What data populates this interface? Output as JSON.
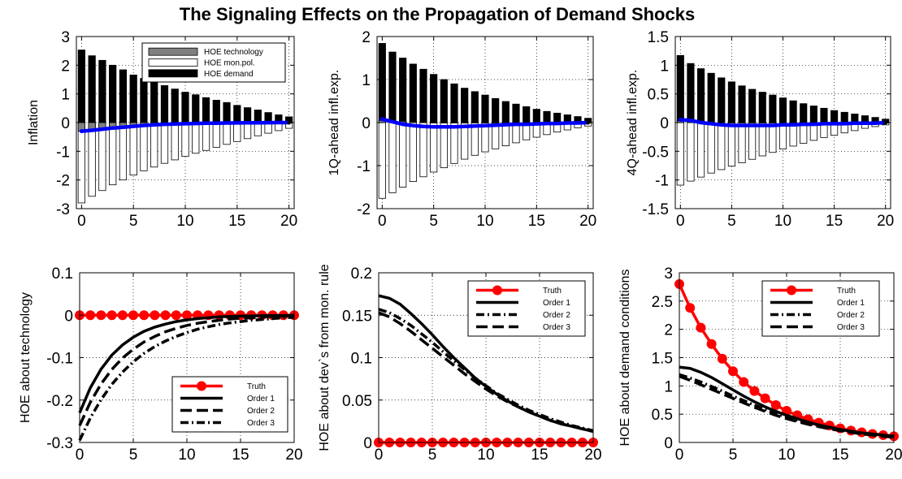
{
  "figure": {
    "title": "The Signaling Effects on the Propagation of Demand Shocks"
  },
  "chart_data": [
    {
      "id": "inflation",
      "type": "bar",
      "ylabel": "Inflation",
      "xlim": [
        -0.5,
        20.5
      ],
      "ylim": [
        -3,
        3
      ],
      "xticks": [
        0,
        5,
        10,
        15,
        20
      ],
      "xtick_labels": [
        "0",
        "5",
        "10",
        "15",
        "20"
      ],
      "yticks": [
        -3,
        -2,
        -1,
        0,
        1,
        2,
        3
      ],
      "ytick_labels": [
        "-3",
        "-2",
        "-1",
        "0",
        "1",
        "2",
        "3"
      ],
      "grid": "dotted",
      "legend": {
        "position": "top-right",
        "entries": [
          "HOE technology",
          "HOE mon.pol.",
          "HOE demand"
        ]
      },
      "x": [
        0,
        1,
        2,
        3,
        4,
        5,
        6,
        7,
        8,
        9,
        10,
        11,
        12,
        13,
        14,
        15,
        16,
        17,
        18,
        19,
        20
      ],
      "series": [
        {
          "name": "HOE technology",
          "color": "#808080",
          "values": [
            -0.3,
            -0.24,
            -0.19,
            -0.15,
            -0.12,
            -0.09,
            -0.07,
            -0.05,
            -0.04,
            -0.03,
            -0.02,
            -0.015,
            -0.01,
            -0.008,
            -0.006,
            -0.004,
            -0.003,
            -0.002,
            -0.001,
            -0.001,
            0
          ]
        },
        {
          "name": "HOE mon.pol.",
          "color": "#ffffff",
          "values": [
            -2.8,
            -2.57,
            -2.37,
            -2.17,
            -2.0,
            -1.83,
            -1.68,
            -1.55,
            -1.42,
            -1.3,
            -1.18,
            -1.07,
            -0.97,
            -0.86,
            -0.76,
            -0.66,
            -0.56,
            -0.46,
            -0.37,
            -0.28,
            -0.2
          ]
        },
        {
          "name": "HOE demand",
          "color": "#000000",
          "values": [
            2.53,
            2.33,
            2.17,
            2.0,
            1.84,
            1.66,
            1.54,
            1.41,
            1.29,
            1.17,
            1.06,
            0.97,
            0.87,
            0.78,
            0.7,
            0.6,
            0.52,
            0.44,
            0.35,
            0.27,
            0.2
          ]
        },
        {
          "name": "",
          "type": "line",
          "color": "#0000ff",
          "values": [
            -0.3,
            -0.27,
            -0.23,
            -0.19,
            -0.16,
            -0.13,
            -0.1,
            -0.08,
            -0.06,
            -0.05,
            -0.04,
            -0.03,
            -0.02,
            -0.02,
            -0.015,
            -0.01,
            -0.008,
            -0.005,
            -0.003,
            -0.001,
            0
          ]
        }
      ]
    },
    {
      "id": "infl1q",
      "type": "bar",
      "ylabel": "1Q-ahead infl.exp.",
      "xlim": [
        -0.5,
        20.5
      ],
      "ylim": [
        -2,
        2
      ],
      "xticks": [
        0,
        5,
        10,
        15,
        20
      ],
      "xtick_labels": [
        "0",
        "5",
        "10",
        "15",
        "20"
      ],
      "yticks": [
        -2,
        -1,
        0,
        1,
        2
      ],
      "ytick_labels": [
        "-2",
        "-1",
        "0",
        "1",
        "2"
      ],
      "grid": "dotted",
      "x": [
        0,
        1,
        2,
        3,
        4,
        5,
        6,
        7,
        8,
        9,
        10,
        11,
        12,
        13,
        14,
        15,
        16,
        17,
        18,
        19,
        20
      ],
      "series": [
        {
          "name": "HOE technology",
          "color": "#808080",
          "values": [
            0.05,
            0.04,
            0.03,
            0.02,
            0.01,
            0,
            0,
            0,
            0,
            0,
            0,
            0,
            0,
            0,
            0,
            0,
            0,
            0,
            0,
            0,
            0
          ]
        },
        {
          "name": "HOE mon.pol.",
          "color": "#ffffff",
          "values": [
            -1.76,
            -1.63,
            -1.5,
            -1.37,
            -1.26,
            -1.15,
            -1.05,
            -0.95,
            -0.85,
            -0.76,
            -0.68,
            -0.61,
            -0.54,
            -0.47,
            -0.4,
            -0.34,
            -0.28,
            -0.22,
            -0.17,
            -0.12,
            -0.08
          ]
        },
        {
          "name": "HOE demand",
          "color": "#000000",
          "values": [
            1.84,
            1.64,
            1.5,
            1.36,
            1.24,
            1.12,
            1.0,
            0.9,
            0.8,
            0.72,
            0.64,
            0.56,
            0.49,
            0.43,
            0.37,
            0.31,
            0.26,
            0.22,
            0.18,
            0.14,
            0.1
          ]
        },
        {
          "name": "",
          "type": "line",
          "color": "#0000ff",
          "values": [
            0.08,
            0.02,
            -0.04,
            -0.07,
            -0.09,
            -0.1,
            -0.1,
            -0.1,
            -0.09,
            -0.08,
            -0.07,
            -0.06,
            -0.05,
            -0.04,
            -0.04,
            -0.03,
            -0.02,
            -0.02,
            -0.01,
            -0.01,
            0
          ]
        }
      ]
    },
    {
      "id": "infl4q",
      "type": "bar",
      "ylabel": "4Q-ahead infl.exp.",
      "xlim": [
        -0.5,
        20.5
      ],
      "ylim": [
        -1.5,
        1.5
      ],
      "xticks": [
        0,
        5,
        10,
        15,
        20
      ],
      "xtick_labels": [
        "0",
        "5",
        "10",
        "15",
        "20"
      ],
      "yticks": [
        -1.5,
        -1,
        -0.5,
        0,
        0.5,
        1,
        1.5
      ],
      "ytick_labels": [
        "-1.5",
        "-1",
        "-0.5",
        "0",
        "0.5",
        "1",
        "1.5"
      ],
      "grid": "dotted",
      "x": [
        0,
        1,
        2,
        3,
        4,
        5,
        6,
        7,
        8,
        9,
        10,
        11,
        12,
        13,
        14,
        15,
        16,
        17,
        18,
        19,
        20
      ],
      "series": [
        {
          "name": "HOE technology",
          "color": "#808080",
          "values": [
            0.03,
            0.02,
            0.015,
            0.01,
            0.005,
            0,
            0,
            0,
            0,
            0,
            0,
            0,
            0,
            0,
            0,
            0,
            0,
            0,
            0,
            0,
            0
          ]
        },
        {
          "name": "HOE mon.pol.",
          "color": "#ffffff",
          "values": [
            -1.09,
            -1.02,
            -0.95,
            -0.88,
            -0.82,
            -0.76,
            -0.7,
            -0.64,
            -0.58,
            -0.52,
            -0.46,
            -0.41,
            -0.36,
            -0.31,
            -0.26,
            -0.22,
            -0.18,
            -0.14,
            -0.1,
            -0.07,
            -0.04
          ]
        },
        {
          "name": "HOE demand",
          "color": "#000000",
          "values": [
            1.17,
            1.03,
            0.94,
            0.86,
            0.78,
            0.71,
            0.64,
            0.58,
            0.53,
            0.48,
            0.43,
            0.38,
            0.33,
            0.29,
            0.25,
            0.21,
            0.18,
            0.15,
            0.12,
            0.09,
            0.06
          ]
        },
        {
          "name": "",
          "type": "line",
          "color": "#0000ff",
          "values": [
            0.05,
            0.04,
            0.0,
            -0.02,
            -0.04,
            -0.05,
            -0.05,
            -0.05,
            -0.05,
            -0.05,
            -0.04,
            -0.04,
            -0.03,
            -0.03,
            -0.02,
            -0.02,
            -0.02,
            -0.01,
            -0.01,
            -0.01,
            0
          ]
        }
      ]
    },
    {
      "id": "hoe_tech",
      "type": "line",
      "ylabel": "HOE  about technology",
      "xlim": [
        0,
        20
      ],
      "ylim": [
        -0.3,
        0.1
      ],
      "xticks": [
        0,
        5,
        10,
        15,
        20
      ],
      "xtick_labels": [
        "0",
        "5",
        "10",
        "15",
        "20"
      ],
      "yticks": [
        -0.3,
        -0.2,
        -0.1,
        0,
        0.1
      ],
      "ytick_labels": [
        "-0.3",
        "-0.2",
        "-0.1",
        "0",
        "0.1"
      ],
      "grid": "dotted",
      "legend": {
        "position": "bottom-right",
        "entries": [
          "Truth",
          "Order 1",
          "Order 2",
          "Order 3"
        ]
      },
      "x": [
        0,
        1,
        2,
        3,
        4,
        5,
        6,
        7,
        8,
        9,
        10,
        11,
        12,
        13,
        14,
        15,
        16,
        17,
        18,
        19,
        20
      ],
      "series": [
        {
          "name": "Truth",
          "style": "red-dot",
          "values": [
            0,
            0,
            0,
            0,
            0,
            0,
            0,
            0,
            0,
            0,
            0,
            0,
            0,
            0,
            0,
            0,
            0,
            0,
            0,
            0,
            0
          ]
        },
        {
          "name": "Order 1",
          "style": "solid",
          "values": [
            -0.23,
            -0.171,
            -0.127,
            -0.094,
            -0.07,
            -0.052,
            -0.038,
            -0.028,
            -0.021,
            -0.015,
            -0.011,
            -0.008,
            -0.006,
            -0.004,
            -0.003,
            -0.002,
            -0.002,
            -0.001,
            -0.001,
            -0.001,
            0
          ]
        },
        {
          "name": "Order 2",
          "style": "dashed",
          "values": [
            -0.26,
            -0.205,
            -0.162,
            -0.128,
            -0.101,
            -0.08,
            -0.063,
            -0.05,
            -0.039,
            -0.031,
            -0.024,
            -0.019,
            -0.015,
            -0.012,
            -0.009,
            -0.007,
            -0.006,
            -0.004,
            -0.003,
            -0.002,
            -0.002
          ]
        },
        {
          "name": "Order 3",
          "style": "dashdot",
          "values": [
            -0.295,
            -0.242,
            -0.199,
            -0.163,
            -0.134,
            -0.11,
            -0.09,
            -0.074,
            -0.061,
            -0.05,
            -0.041,
            -0.033,
            -0.027,
            -0.022,
            -0.018,
            -0.015,
            -0.012,
            -0.01,
            -0.008,
            -0.006,
            -0.005
          ]
        }
      ]
    },
    {
      "id": "hoe_mon",
      "type": "line",
      "ylabel": "HOE  about dev`s from mon. rule",
      "xlim": [
        0,
        20
      ],
      "ylim": [
        0,
        0.2
      ],
      "xticks": [
        0,
        5,
        10,
        15,
        20
      ],
      "xtick_labels": [
        "0",
        "5",
        "10",
        "15",
        "20"
      ],
      "yticks": [
        0,
        0.05,
        0.1,
        0.15,
        0.2
      ],
      "ytick_labels": [
        "0",
        "0.05",
        "0.1",
        "0.15",
        "0.2"
      ],
      "grid": "dotted",
      "legend": {
        "position": "top-right",
        "entries": [
          "Truth",
          "Order 1",
          "Order 2",
          "Order 3"
        ]
      },
      "x": [
        0,
        1,
        2,
        3,
        4,
        5,
        6,
        7,
        8,
        9,
        10,
        11,
        12,
        13,
        14,
        15,
        16,
        17,
        18,
        19,
        20
      ],
      "series": [
        {
          "name": "Truth",
          "style": "red-dot",
          "values": [
            0,
            0,
            0,
            0,
            0,
            0,
            0,
            0,
            0,
            0,
            0,
            0,
            0,
            0,
            0,
            0,
            0,
            0,
            0,
            0,
            0
          ]
        },
        {
          "name": "Order 1",
          "style": "solid",
          "values": [
            0.173,
            0.17,
            0.163,
            0.152,
            0.14,
            0.127,
            0.113,
            0.1,
            0.088,
            0.076,
            0.066,
            0.057,
            0.049,
            0.042,
            0.036,
            0.031,
            0.026,
            0.022,
            0.019,
            0.016,
            0.013
          ]
        },
        {
          "name": "Order 2",
          "style": "dashdot",
          "values": [
            0.157,
            0.153,
            0.146,
            0.138,
            0.128,
            0.118,
            0.107,
            0.096,
            0.086,
            0.076,
            0.067,
            0.058,
            0.051,
            0.044,
            0.038,
            0.033,
            0.028,
            0.024,
            0.02,
            0.017,
            0.014
          ]
        },
        {
          "name": "Order 3",
          "style": "dashed",
          "values": [
            0.153,
            0.148,
            0.14,
            0.131,
            0.121,
            0.111,
            0.101,
            0.091,
            0.081,
            0.072,
            0.063,
            0.055,
            0.048,
            0.042,
            0.036,
            0.031,
            0.026,
            0.022,
            0.019,
            0.016,
            0.013
          ]
        }
      ]
    },
    {
      "id": "hoe_demand",
      "type": "line",
      "ylabel": "HOE  about demand conditions",
      "xlim": [
        0,
        20
      ],
      "ylim": [
        0,
        3
      ],
      "xticks": [
        0,
        5,
        10,
        15,
        20
      ],
      "xtick_labels": [
        "0",
        "5",
        "10",
        "15",
        "20"
      ],
      "yticks": [
        0,
        0.5,
        1,
        1.5,
        2,
        2.5,
        3
      ],
      "ytick_labels": [
        "0",
        "0.5",
        "1",
        "1.5",
        "2",
        "2.5",
        "3"
      ],
      "grid": "dotted",
      "legend": {
        "position": "top-right",
        "entries": [
          "Truth",
          "Order 1",
          "Order 2",
          "Order 3"
        ]
      },
      "x": [
        0,
        1,
        2,
        3,
        4,
        5,
        6,
        7,
        8,
        9,
        10,
        11,
        12,
        13,
        14,
        15,
        16,
        17,
        18,
        19,
        20
      ],
      "series": [
        {
          "name": "Truth",
          "style": "red-dot",
          "values": [
            2.8,
            2.38,
            2.03,
            1.74,
            1.48,
            1.26,
            1.07,
            0.91,
            0.78,
            0.66,
            0.56,
            0.48,
            0.41,
            0.35,
            0.3,
            0.25,
            0.21,
            0.18,
            0.15,
            0.13,
            0.11
          ]
        },
        {
          "name": "Order 1",
          "style": "solid",
          "values": [
            1.33,
            1.31,
            1.24,
            1.15,
            1.04,
            0.93,
            0.82,
            0.72,
            0.63,
            0.55,
            0.48,
            0.42,
            0.36,
            0.31,
            0.27,
            0.23,
            0.2,
            0.17,
            0.15,
            0.13,
            0.11
          ]
        },
        {
          "name": "Order 2",
          "style": "dashdot",
          "values": [
            1.2,
            1.14,
            1.07,
            0.99,
            0.91,
            0.82,
            0.74,
            0.66,
            0.58,
            0.51,
            0.45,
            0.39,
            0.34,
            0.3,
            0.26,
            0.22,
            0.19,
            0.16,
            0.14,
            0.12,
            0.1
          ]
        },
        {
          "name": "Order 3",
          "style": "dashed",
          "values": [
            1.17,
            1.1,
            1.02,
            0.94,
            0.86,
            0.78,
            0.7,
            0.62,
            0.55,
            0.48,
            0.42,
            0.37,
            0.32,
            0.28,
            0.24,
            0.21,
            0.18,
            0.15,
            0.13,
            0.11,
            0.09
          ]
        }
      ]
    }
  ]
}
